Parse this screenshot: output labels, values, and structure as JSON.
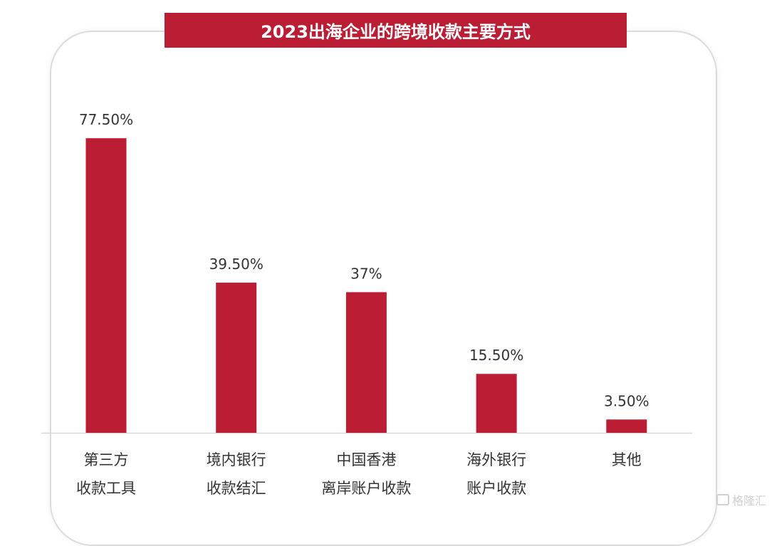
{
  "chart_data": {
    "type": "bar",
    "title": "2023出海企业的跨境收款主要方式",
    "categories": [
      [
        "第三方",
        "收款工具"
      ],
      [
        "境内银行",
        "收款结汇"
      ],
      [
        "中国香港",
        "离岸账户收款"
      ],
      [
        "海外银行",
        "账户收款"
      ],
      [
        "其他"
      ]
    ],
    "values": [
      77.5,
      39.5,
      37,
      15.5,
      3.5
    ],
    "data_labels": [
      "77.50%",
      "39.50%",
      "37%",
      "15.50%",
      "3.50%"
    ],
    "xlabel": "",
    "ylabel": "",
    "ylim": [
      0,
      100
    ],
    "grid": false,
    "bar_color": "#bb1d35"
  },
  "watermark": "格隆汇"
}
